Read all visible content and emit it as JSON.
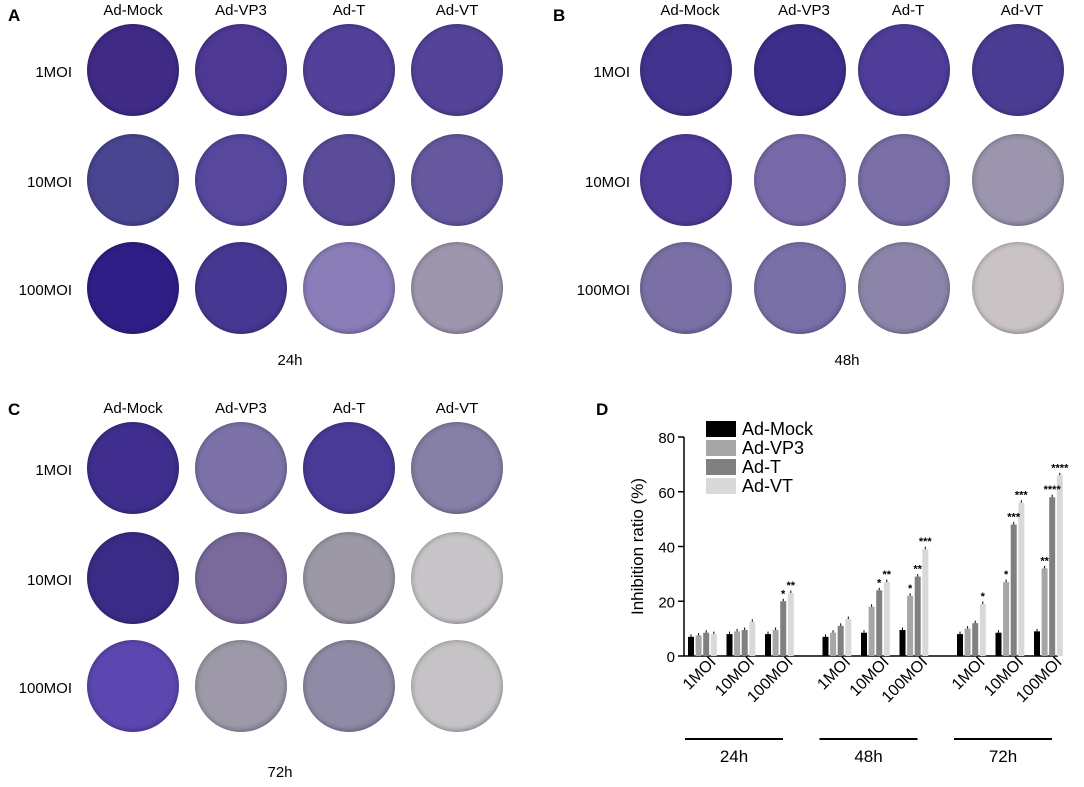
{
  "panels": [
    {
      "letter": "A",
      "time": "24h"
    },
    {
      "letter": "B",
      "time": "48h"
    },
    {
      "letter": "C",
      "time": "72h"
    },
    {
      "letter": "D"
    }
  ],
  "columns": [
    "Ad-Mock",
    "Ad-VP3",
    "Ad-T",
    "Ad-VT"
  ],
  "rows": [
    "1MOI",
    "10MOI",
    "100MOI"
  ],
  "well_colors": {
    "24h": [
      [
        "#3f2a86",
        "#4d3894",
        "#53409a",
        "#544398"
      ],
      [
        "#4a4591",
        "#57479d",
        "#5b4c9a",
        "#66589f"
      ],
      [
        "#2f1e86",
        "#463892",
        "#8a7db8",
        "#9d96ad"
      ]
    ],
    "48h": [
      [
        "#41338e",
        "#3d2e8c",
        "#4e3d99",
        "#4b3c93"
      ],
      [
        "#4f3b98",
        "#786aa9",
        "#7a6fa6",
        "#9b95ad"
      ],
      [
        "#7a70a5",
        "#7a70a8",
        "#8c85a9",
        "#c9c3c5"
      ]
    ],
    "72h": [
      [
        "#3f2e8e",
        "#7d72a8",
        "#4a3a97",
        "#867fa6"
      ],
      [
        "#3a2c86",
        "#7a6a9c",
        "#9c98a6",
        "#c8c5c8"
      ],
      [
        "#5c47b0",
        "#9d99a8",
        "#8f8aa5",
        "#c6c3c6"
      ]
    ]
  },
  "chart_data": {
    "type": "bar",
    "ylabel": "Inhibition ratio (%)",
    "ylim": [
      0,
      80
    ],
    "yticks": [
      "0",
      "20",
      "40",
      "60",
      "80"
    ],
    "categories": [
      "1MOI",
      "10MOI",
      "100MOI"
    ],
    "groups": [
      "24h",
      "48h",
      "72h"
    ],
    "series": [
      {
        "name": "Ad-Mock",
        "color": "#000000",
        "values": [
          [
            7,
            8,
            8
          ],
          [
            7,
            8.5,
            9.5
          ],
          [
            8,
            8.5,
            9
          ]
        ]
      },
      {
        "name": "Ad-VP3",
        "color": "#a6a6a6",
        "values": [
          [
            7.5,
            9,
            9.5
          ],
          [
            8.5,
            18,
            22
          ],
          [
            10,
            27,
            32
          ]
        ]
      },
      {
        "name": "Ad-T",
        "color": "#808080",
        "values": [
          [
            8.5,
            9.5,
            20
          ],
          [
            11,
            24,
            29
          ],
          [
            12,
            48,
            58
          ]
        ]
      },
      {
        "name": "Ad-VT",
        "color": "#d9d9d9",
        "values": [
          [
            8,
            12.5,
            23
          ],
          [
            13.5,
            27,
            39
          ],
          [
            19,
            56,
            66
          ]
        ]
      }
    ],
    "significance": [
      {
        "group": 0,
        "category": 2,
        "series": 2,
        "label": "*"
      },
      {
        "group": 0,
        "category": 2,
        "series": 3,
        "label": "**"
      },
      {
        "group": 1,
        "category": 1,
        "series": 2,
        "label": "*"
      },
      {
        "group": 1,
        "category": 1,
        "series": 3,
        "label": "**"
      },
      {
        "group": 1,
        "category": 2,
        "series": 1,
        "label": "*"
      },
      {
        "group": 1,
        "category": 2,
        "series": 2,
        "label": "**"
      },
      {
        "group": 1,
        "category": 2,
        "series": 3,
        "label": "***"
      },
      {
        "group": 2,
        "category": 0,
        "series": 3,
        "label": "*"
      },
      {
        "group": 2,
        "category": 1,
        "series": 1,
        "label": "*"
      },
      {
        "group": 2,
        "category": 1,
        "series": 2,
        "label": "***"
      },
      {
        "group": 2,
        "category": 1,
        "series": 3,
        "label": "***"
      },
      {
        "group": 2,
        "category": 2,
        "series": 1,
        "label": "**"
      },
      {
        "group": 2,
        "category": 2,
        "series": 2,
        "label": "****"
      },
      {
        "group": 2,
        "category": 2,
        "series": 3,
        "label": "****"
      }
    ]
  }
}
